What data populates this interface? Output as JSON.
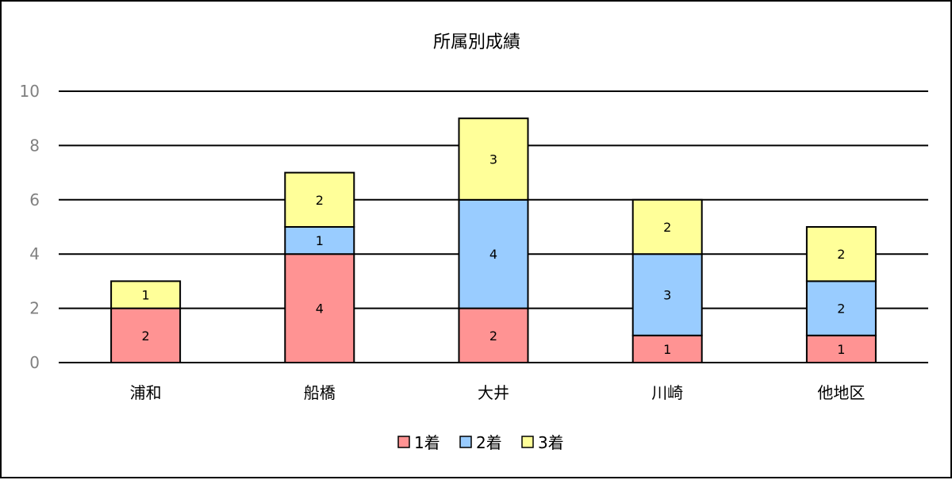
{
  "chart_data": {
    "type": "bar",
    "stacked": true,
    "title": "所属別成績",
    "xlabel": "",
    "ylabel": "",
    "categories": [
      "浦和",
      "船橋",
      "大井",
      "川崎",
      "他地区"
    ],
    "series": [
      {
        "name": "1着",
        "color": "#ff9393",
        "values": [
          2,
          4,
          2,
          1,
          1
        ]
      },
      {
        "name": "2着",
        "color": "#99ccff",
        "values": [
          0,
          1,
          4,
          3,
          2
        ]
      },
      {
        "name": "3着",
        "color": "#ffff99",
        "values": [
          1,
          2,
          3,
          2,
          2
        ]
      }
    ],
    "ylim": [
      0,
      10
    ],
    "yticks": [
      "0",
      "2",
      "4",
      "6",
      "8",
      "10"
    ],
    "grid": true,
    "legend": "bottom"
  }
}
